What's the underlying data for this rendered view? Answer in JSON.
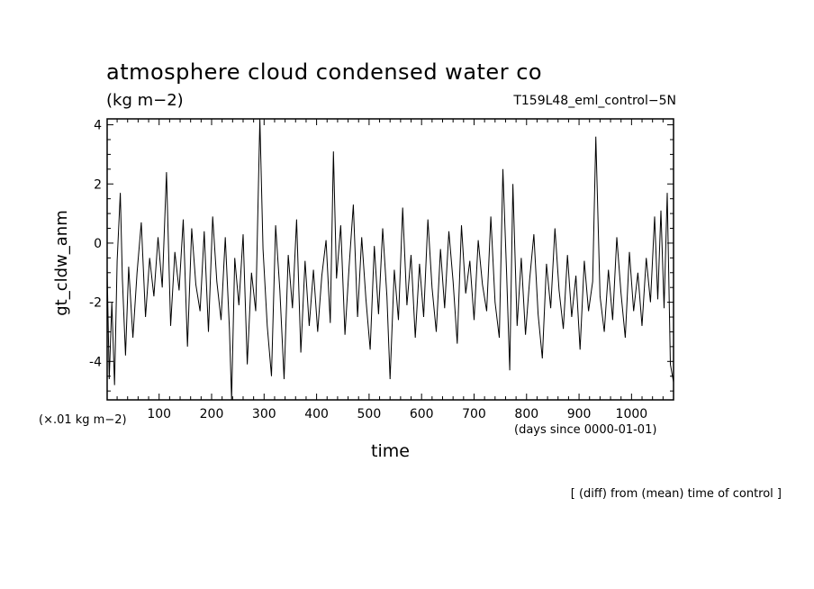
{
  "chart_data": {
    "type": "line",
    "title": "atmosphere cloud condensed water co",
    "units": "(kg m−2)",
    "run_name": "T159L48_eml_control−5N",
    "ylabel": "gt_cldw_anm",
    "yscale_note": "(×.01 kg m−2)",
    "xlabel": "time",
    "xunit_note": "(days since 0000-01-01)",
    "footnote": "[ (diff) from (mean) time of control ]",
    "xlim": [
      1,
      1080
    ],
    "ylim": [
      -5.3,
      4.2
    ],
    "x_ticks": [
      100,
      200,
      300,
      400,
      500,
      600,
      700,
      800,
      900,
      1000
    ],
    "y_ticks": [
      -4,
      -2,
      0,
      2,
      4
    ],
    "series": [
      {
        "values": [
          {
            "x": 1,
            "y": -0.9
          },
          {
            "x": 5,
            "y": -4.6
          },
          {
            "x": 10,
            "y": -2.0
          },
          {
            "x": 15,
            "y": -4.8
          },
          {
            "x": 20,
            "y": -0.6
          },
          {
            "x": 26,
            "y": 1.7
          },
          {
            "x": 30,
            "y": -1.2
          },
          {
            "x": 36,
            "y": -3.8
          },
          {
            "x": 42,
            "y": -0.8
          },
          {
            "x": 50,
            "y": -3.2
          },
          {
            "x": 58,
            "y": -1.0
          },
          {
            "x": 66,
            "y": 0.7
          },
          {
            "x": 74,
            "y": -2.5
          },
          {
            "x": 82,
            "y": -0.5
          },
          {
            "x": 90,
            "y": -1.8
          },
          {
            "x": 98,
            "y": 0.2
          },
          {
            "x": 106,
            "y": -1.5
          },
          {
            "x": 114,
            "y": 2.4
          },
          {
            "x": 122,
            "y": -2.8
          },
          {
            "x": 130,
            "y": -0.3
          },
          {
            "x": 138,
            "y": -1.6
          },
          {
            "x": 146,
            "y": 0.8
          },
          {
            "x": 154,
            "y": -3.5
          },
          {
            "x": 162,
            "y": 0.5
          },
          {
            "x": 170,
            "y": -1.4
          },
          {
            "x": 178,
            "y": -2.3
          },
          {
            "x": 186,
            "y": 0.4
          },
          {
            "x": 194,
            "y": -3.0
          },
          {
            "x": 202,
            "y": 0.9
          },
          {
            "x": 210,
            "y": -1.3
          },
          {
            "x": 218,
            "y": -2.6
          },
          {
            "x": 226,
            "y": 0.2
          },
          {
            "x": 234,
            "y": -2.9
          },
          {
            "x": 238,
            "y": -5.3
          },
          {
            "x": 244,
            "y": -0.5
          },
          {
            "x": 252,
            "y": -2.1
          },
          {
            "x": 260,
            "y": 0.3
          },
          {
            "x": 268,
            "y": -4.1
          },
          {
            "x": 276,
            "y": -1.0
          },
          {
            "x": 284,
            "y": -2.3
          },
          {
            "x": 292,
            "y": 4.2
          },
          {
            "x": 298,
            "y": -0.2
          },
          {
            "x": 306,
            "y": -2.8
          },
          {
            "x": 314,
            "y": -4.5
          },
          {
            "x": 322,
            "y": 0.6
          },
          {
            "x": 330,
            "y": -1.6
          },
          {
            "x": 338,
            "y": -4.6
          },
          {
            "x": 346,
            "y": -0.4
          },
          {
            "x": 354,
            "y": -2.2
          },
          {
            "x": 362,
            "y": 0.8
          },
          {
            "x": 370,
            "y": -3.7
          },
          {
            "x": 378,
            "y": -0.6
          },
          {
            "x": 386,
            "y": -2.8
          },
          {
            "x": 394,
            "y": -0.9
          },
          {
            "x": 402,
            "y": -3.0
          },
          {
            "x": 410,
            "y": -1.1
          },
          {
            "x": 418,
            "y": 0.1
          },
          {
            "x": 426,
            "y": -2.7
          },
          {
            "x": 432,
            "y": 3.1
          },
          {
            "x": 438,
            "y": -1.2
          },
          {
            "x": 446,
            "y": 0.6
          },
          {
            "x": 454,
            "y": -3.1
          },
          {
            "x": 462,
            "y": -0.8
          },
          {
            "x": 470,
            "y": 1.3
          },
          {
            "x": 478,
            "y": -2.5
          },
          {
            "x": 486,
            "y": 0.2
          },
          {
            "x": 494,
            "y": -1.9
          },
          {
            "x": 502,
            "y": -3.6
          },
          {
            "x": 510,
            "y": -0.1
          },
          {
            "x": 518,
            "y": -2.4
          },
          {
            "x": 526,
            "y": 0.5
          },
          {
            "x": 534,
            "y": -1.8
          },
          {
            "x": 540,
            "y": -4.6
          },
          {
            "x": 548,
            "y": -0.9
          },
          {
            "x": 556,
            "y": -2.6
          },
          {
            "x": 564,
            "y": 1.2
          },
          {
            "x": 572,
            "y": -2.1
          },
          {
            "x": 580,
            "y": -0.4
          },
          {
            "x": 588,
            "y": -3.2
          },
          {
            "x": 596,
            "y": -0.7
          },
          {
            "x": 604,
            "y": -2.5
          },
          {
            "x": 612,
            "y": 0.8
          },
          {
            "x": 620,
            "y": -1.5
          },
          {
            "x": 628,
            "y": -3.0
          },
          {
            "x": 636,
            "y": -0.2
          },
          {
            "x": 644,
            "y": -2.2
          },
          {
            "x": 652,
            "y": 0.4
          },
          {
            "x": 660,
            "y": -1.3
          },
          {
            "x": 668,
            "y": -3.4
          },
          {
            "x": 676,
            "y": 0.6
          },
          {
            "x": 684,
            "y": -1.7
          },
          {
            "x": 692,
            "y": -0.6
          },
          {
            "x": 700,
            "y": -2.6
          },
          {
            "x": 708,
            "y": 0.1
          },
          {
            "x": 716,
            "y": -1.4
          },
          {
            "x": 724,
            "y": -2.3
          },
          {
            "x": 732,
            "y": 0.9
          },
          {
            "x": 740,
            "y": -2.0
          },
          {
            "x": 748,
            "y": -3.2
          },
          {
            "x": 755,
            "y": 2.5
          },
          {
            "x": 762,
            "y": -1.0
          },
          {
            "x": 768,
            "y": -4.3
          },
          {
            "x": 774,
            "y": 2.0
          },
          {
            "x": 782,
            "y": -2.8
          },
          {
            "x": 790,
            "y": -0.5
          },
          {
            "x": 798,
            "y": -3.1
          },
          {
            "x": 806,
            "y": -1.2
          },
          {
            "x": 814,
            "y": 0.3
          },
          {
            "x": 822,
            "y": -2.4
          },
          {
            "x": 830,
            "y": -3.9
          },
          {
            "x": 838,
            "y": -0.7
          },
          {
            "x": 846,
            "y": -2.2
          },
          {
            "x": 854,
            "y": 0.5
          },
          {
            "x": 862,
            "y": -1.6
          },
          {
            "x": 870,
            "y": -2.9
          },
          {
            "x": 878,
            "y": -0.4
          },
          {
            "x": 886,
            "y": -2.5
          },
          {
            "x": 894,
            "y": -1.1
          },
          {
            "x": 902,
            "y": -3.6
          },
          {
            "x": 910,
            "y": -0.6
          },
          {
            "x": 918,
            "y": -2.3
          },
          {
            "x": 926,
            "y": -1.3
          },
          {
            "x": 932,
            "y": 3.6
          },
          {
            "x": 940,
            "y": -1.8
          },
          {
            "x": 948,
            "y": -3.0
          },
          {
            "x": 956,
            "y": -0.9
          },
          {
            "x": 964,
            "y": -2.6
          },
          {
            "x": 972,
            "y": 0.2
          },
          {
            "x": 980,
            "y": -1.7
          },
          {
            "x": 988,
            "y": -3.2
          },
          {
            "x": 996,
            "y": -0.3
          },
          {
            "x": 1004,
            "y": -2.3
          },
          {
            "x": 1012,
            "y": -1.0
          },
          {
            "x": 1020,
            "y": -2.8
          },
          {
            "x": 1028,
            "y": -0.5
          },
          {
            "x": 1036,
            "y": -2.0
          },
          {
            "x": 1044,
            "y": 0.9
          },
          {
            "x": 1050,
            "y": -1.9
          },
          {
            "x": 1056,
            "y": 1.1
          },
          {
            "x": 1062,
            "y": -2.2
          },
          {
            "x": 1068,
            "y": 1.7
          },
          {
            "x": 1074,
            "y": -4.1
          },
          {
            "x": 1080,
            "y": -4.7
          }
        ]
      }
    ]
  }
}
